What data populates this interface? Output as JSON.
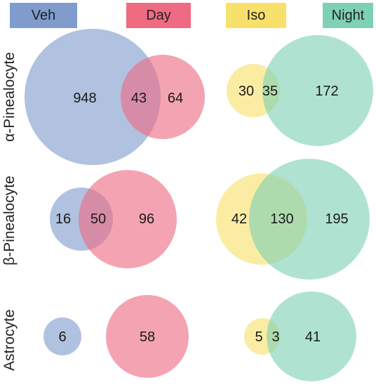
{
  "legend": [
    {
      "id": "veh",
      "label": "Veh",
      "color": "#7f9ccd"
    },
    {
      "id": "day",
      "label": "Day",
      "color": "#ee6b82"
    },
    {
      "id": "iso",
      "label": "Iso",
      "color": "#f7e16b"
    },
    {
      "id": "night",
      "label": "Night",
      "color": "#7fd1b4"
    }
  ],
  "rows": [
    {
      "label": "α-Pinealocyte"
    },
    {
      "label": "β-Pinealocyte"
    },
    {
      "label": "Astrocyte"
    }
  ],
  "chart_data": {
    "type": "venn",
    "comparisons": [
      {
        "row": "α-Pinealocyte",
        "sets": [
          "Veh",
          "Day"
        ],
        "only_a": 948,
        "overlap": 43,
        "only_b": 64
      },
      {
        "row": "α-Pinealocyte",
        "sets": [
          "Iso",
          "Night"
        ],
        "only_a": 30,
        "overlap": 35,
        "only_b": 172
      },
      {
        "row": "β-Pinealocyte",
        "sets": [
          "Veh",
          "Day"
        ],
        "only_a": 16,
        "overlap": 50,
        "only_b": 96
      },
      {
        "row": "β-Pinealocyte",
        "sets": [
          "Iso",
          "Night"
        ],
        "only_a": 42,
        "overlap": 130,
        "only_b": 195
      },
      {
        "row": "Astrocyte",
        "sets": [
          "Veh",
          "Day"
        ],
        "only_a": 6,
        "overlap": null,
        "only_b": 58
      },
      {
        "row": "Astrocyte",
        "sets": [
          "Iso",
          "Night"
        ],
        "only_a": 5,
        "overlap": 3,
        "only_b": 41
      }
    ]
  }
}
